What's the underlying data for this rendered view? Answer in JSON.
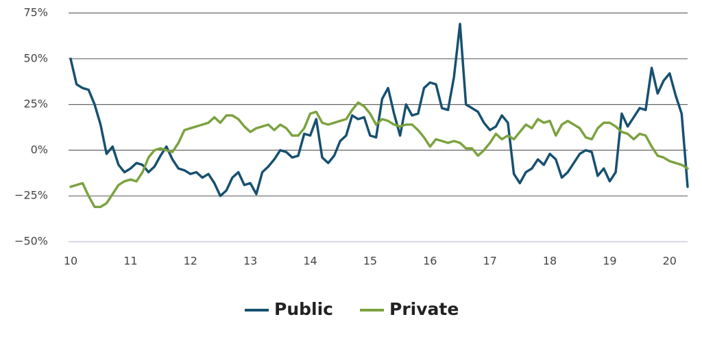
{
  "chart_data": {
    "type": "line",
    "x": [
      10.0,
      10.1,
      10.2,
      10.3,
      10.4,
      10.5,
      10.6,
      10.7,
      10.8,
      10.9,
      11.0,
      11.1,
      11.2,
      11.3,
      11.4,
      11.5,
      11.6,
      11.7,
      11.8,
      11.9,
      12.0,
      12.1,
      12.2,
      12.3,
      12.4,
      12.5,
      12.6,
      12.7,
      12.8,
      12.9,
      13.0,
      13.1,
      13.2,
      13.3,
      13.4,
      13.5,
      13.6,
      13.7,
      13.8,
      13.9,
      14.0,
      14.1,
      14.2,
      14.3,
      14.4,
      14.5,
      14.6,
      14.7,
      14.8,
      14.9,
      15.0,
      15.1,
      15.2,
      15.3,
      15.4,
      15.5,
      15.6,
      15.7,
      15.8,
      15.9,
      16.0,
      16.1,
      16.2,
      16.3,
      16.4,
      16.5,
      16.6,
      16.7,
      16.8,
      16.9,
      17.0,
      17.1,
      17.2,
      17.3,
      17.4,
      17.5,
      17.6,
      17.7,
      17.8,
      17.9,
      18.0,
      18.1,
      18.2,
      18.3,
      18.4,
      18.5,
      18.6,
      18.7,
      18.8,
      18.9,
      19.0,
      19.1,
      19.2,
      19.3,
      19.4,
      19.5,
      19.6,
      19.7,
      19.8,
      19.9,
      20.0,
      20.1,
      20.2,
      20.3
    ],
    "series": [
      {
        "name": "Public",
        "color": "#175070",
        "values": [
          50,
          36,
          34,
          33,
          25,
          14,
          -2,
          2,
          -8,
          -12,
          -10,
          -7,
          -8,
          -12,
          -9,
          -3,
          2,
          -5,
          -10,
          -11,
          -13,
          -12,
          -15,
          -13,
          -18,
          -25,
          -22,
          -15,
          -12,
          -19,
          -18,
          -24,
          -12,
          -9,
          -5,
          0,
          -1,
          -4,
          -3,
          9,
          8,
          17,
          -4,
          -7,
          -3,
          5,
          8,
          19,
          17,
          18,
          8,
          7,
          28,
          34,
          20,
          8,
          25,
          19,
          20,
          34,
          37,
          36,
          23,
          22,
          40,
          69,
          25,
          23,
          21,
          15,
          11,
          13,
          19,
          15,
          -13,
          -18,
          -12,
          -10,
          -5,
          -8,
          -2,
          -5,
          -15,
          -12,
          -7,
          -2,
          0,
          -1,
          -14,
          -10,
          -17,
          -12,
          20,
          13,
          18,
          23,
          22,
          45,
          31,
          38,
          42,
          30,
          20,
          -20
        ]
      },
      {
        "name": "Private",
        "color": "#7ba23f",
        "values": [
          -20,
          -19,
          -18,
          -25,
          -31,
          -31,
          -29,
          -24,
          -19,
          -17,
          -16,
          -17,
          -12,
          -4,
          0,
          1,
          0,
          -1,
          4,
          11,
          12,
          13,
          14,
          15,
          18,
          15,
          19,
          19,
          17,
          13,
          10,
          12,
          13,
          14,
          11,
          14,
          12,
          8,
          8,
          12,
          20,
          21,
          15,
          14,
          15,
          16,
          17,
          22,
          26,
          24,
          20,
          14,
          17,
          16,
          14,
          13,
          14,
          14,
          11,
          7,
          2,
          6,
          5,
          4,
          5,
          4,
          1,
          1,
          -3,
          0,
          4,
          9,
          6,
          8,
          6,
          10,
          14,
          12,
          17,
          15,
          16,
          8,
          14,
          16,
          14,
          12,
          7,
          6,
          12,
          15,
          15,
          13,
          10,
          9,
          6,
          9,
          8,
          2,
          -3,
          -4,
          -6,
          -7,
          -8,
          -10
        ]
      }
    ],
    "xlim": [
      10,
      20.3
    ],
    "xticks": [
      10,
      11,
      12,
      13,
      14,
      15,
      16,
      17,
      18,
      19,
      20
    ],
    "ylim": [
      -50,
      75
    ],
    "yticks": [
      {
        "value": -50,
        "label": "−50%"
      },
      {
        "value": -25,
        "label": "−25%"
      },
      {
        "value": 0,
        "label": "0%"
      },
      {
        "value": 25,
        "label": "25%"
      },
      {
        "value": 50,
        "label": "50%"
      },
      {
        "value": 75,
        "label": "75%"
      }
    ],
    "grid": true,
    "legend": "bottom"
  }
}
